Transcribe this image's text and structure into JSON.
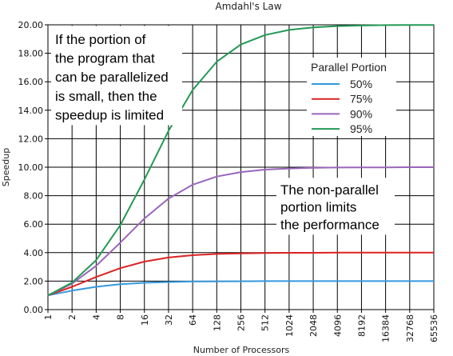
{
  "chart_data": {
    "type": "line",
    "title": "Amdahl's Law",
    "xlabel": "Number of Processors",
    "ylabel": "Speedup",
    "x_scale": "log2",
    "x": [
      1,
      2,
      4,
      8,
      16,
      32,
      64,
      128,
      256,
      512,
      1024,
      2048,
      4096,
      8192,
      16384,
      32768,
      65536
    ],
    "x_ticks": [
      "1",
      "2",
      "4",
      "8",
      "16",
      "32",
      "64",
      "128",
      "256",
      "512",
      "1024",
      "2048",
      "4096",
      "8192",
      "16384",
      "32768",
      "65536"
    ],
    "ylim": [
      0,
      20
    ],
    "y_ticks": [
      "0.00",
      "2.00",
      "4.00",
      "6.00",
      "8.00",
      "10.00",
      "12.00",
      "14.00",
      "16.00",
      "18.00",
      "20.00"
    ],
    "y_tick_values": [
      0,
      2,
      4,
      6,
      8,
      10,
      12,
      14,
      16,
      18,
      20
    ],
    "grid": true,
    "legend": {
      "title": "Parallel Portion",
      "position": "top-right"
    },
    "series": [
      {
        "name": "50%",
        "color": "#3399dd",
        "values": [
          1.0,
          1.33,
          1.6,
          1.78,
          1.88,
          1.94,
          1.97,
          1.98,
          1.99,
          2.0,
          2.0,
          2.0,
          2.0,
          2.0,
          2.0,
          2.0,
          2.0
        ]
      },
      {
        "name": "75%",
        "color": "#dd2222",
        "values": [
          1.0,
          1.6,
          2.29,
          2.91,
          3.37,
          3.66,
          3.82,
          3.91,
          3.95,
          3.98,
          3.99,
          3.99,
          4.0,
          4.0,
          4.0,
          4.0,
          4.0
        ]
      },
      {
        "name": "90%",
        "color": "#9966bb",
        "values": [
          1.0,
          1.82,
          3.08,
          4.71,
          6.4,
          7.8,
          8.77,
          9.34,
          9.66,
          9.83,
          9.91,
          9.96,
          9.98,
          9.99,
          9.99,
          10.0,
          10.0
        ]
      },
      {
        "name": "95%",
        "color": "#229955",
        "values": [
          1.0,
          1.9,
          3.48,
          5.93,
          9.14,
          12.55,
          15.42,
          17.41,
          18.62,
          19.28,
          19.64,
          19.82,
          19.91,
          19.95,
          19.98,
          19.99,
          19.99
        ]
      }
    ],
    "annotations": [
      {
        "id": "top-left",
        "lines": [
          "If the portion of",
          "the program that",
          "can be parallelized",
          "is small, then the",
          "speedup is limited"
        ]
      },
      {
        "id": "middle-right",
        "lines": [
          "The non-parallel",
          "portion limits",
          "the performance"
        ]
      }
    ]
  }
}
